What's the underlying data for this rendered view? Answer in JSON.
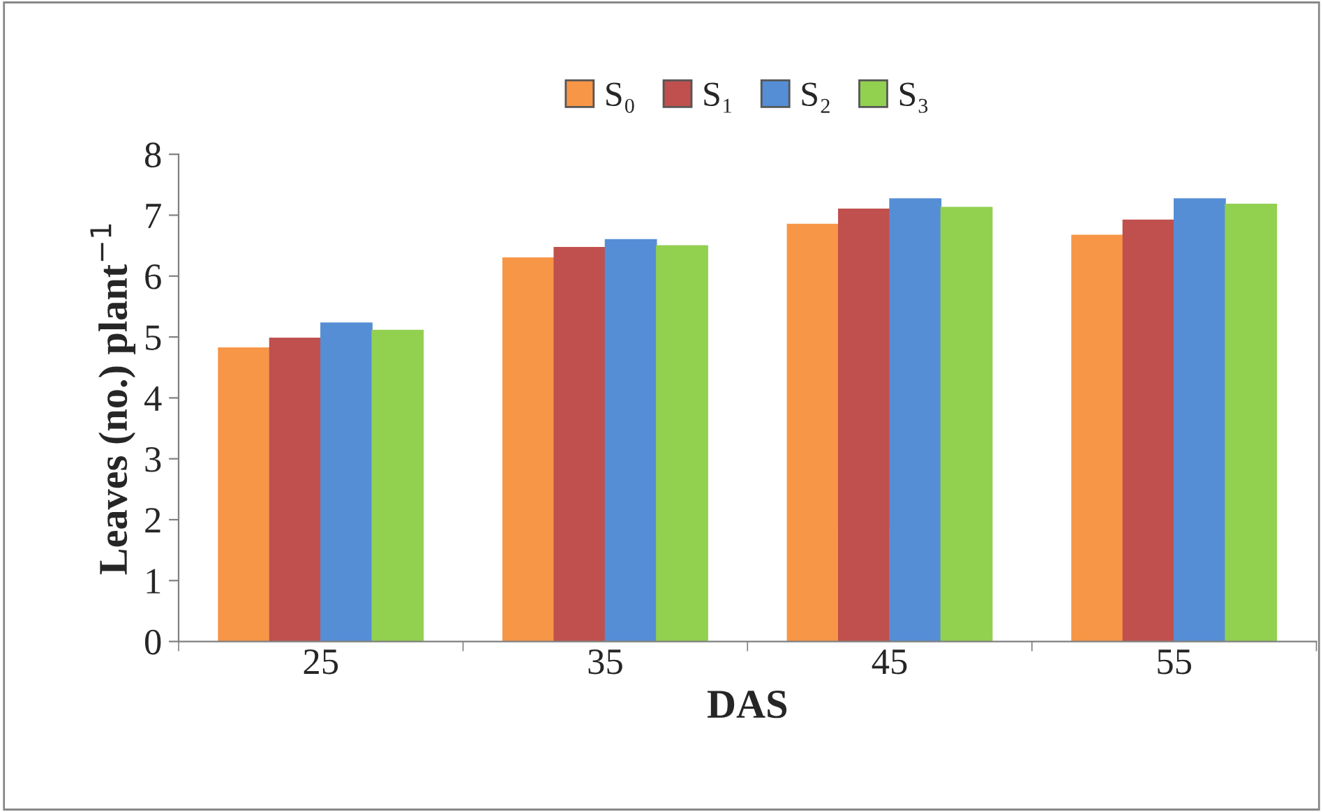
{
  "chart_data": {
    "type": "bar",
    "xlabel": "DAS",
    "ylabel": "Leaves (no.) plant$^{−1}$",
    "categories": [
      "25",
      "35",
      "45",
      "55"
    ],
    "series": [
      {
        "name": "S₀",
        "color": "#f79646",
        "values": [
          4.82,
          6.3,
          6.85,
          6.67
        ]
      },
      {
        "name": "S₁",
        "color": "#c0504d",
        "values": [
          4.98,
          6.47,
          7.1,
          6.92
        ]
      },
      {
        "name": "S₂",
        "color": "#558ed5",
        "values": [
          5.23,
          6.6,
          7.27,
          7.27
        ]
      },
      {
        "name": "S₃",
        "color": "#92d050",
        "values": [
          5.11,
          6.5,
          7.13,
          7.18
        ]
      }
    ],
    "ylim": [
      0,
      8
    ],
    "yticks": [
      0,
      1,
      2,
      3,
      4,
      5,
      6,
      7,
      8
    ],
    "grid": false,
    "legend": "top"
  }
}
